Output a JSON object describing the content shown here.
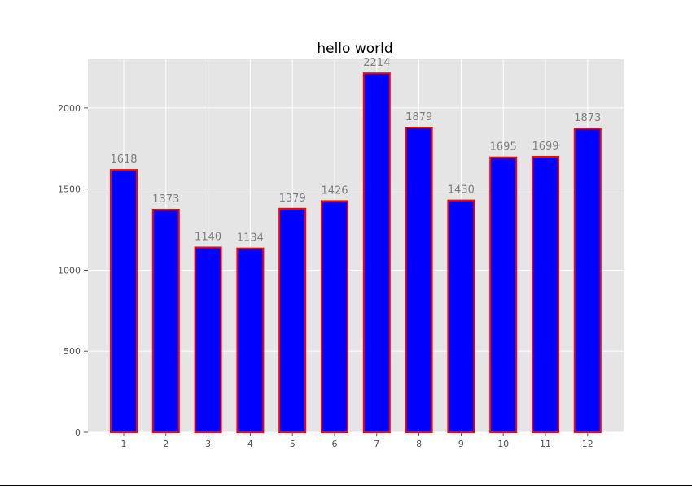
{
  "chart_data": {
    "type": "bar",
    "title": "hello world",
    "xlabel": "",
    "ylabel": "",
    "categories": [
      "1",
      "2",
      "3",
      "4",
      "5",
      "6",
      "7",
      "8",
      "9",
      "10",
      "11",
      "12"
    ],
    "values": [
      1618,
      1373,
      1140,
      1134,
      1379,
      1426,
      2214,
      1879,
      1430,
      1695,
      1699,
      1873
    ],
    "data_labels": [
      "1618",
      "1373",
      "1140",
      "1134",
      "1379",
      "1426",
      "2214",
      "1879",
      "1430",
      "1695",
      "1699",
      "1873"
    ],
    "y_ticks": [
      "0",
      "500",
      "1000",
      "1500",
      "2000"
    ],
    "ylim": [
      0,
      2300
    ],
    "grid": true,
    "colors": {
      "bar_fill": "#0000ff",
      "bar_edge": "#ff0000",
      "plot_background": "#e5e5e5",
      "grid": "#ffffff",
      "data_label": "#808080",
      "tick_label": "#555555",
      "title": "#000000"
    }
  }
}
